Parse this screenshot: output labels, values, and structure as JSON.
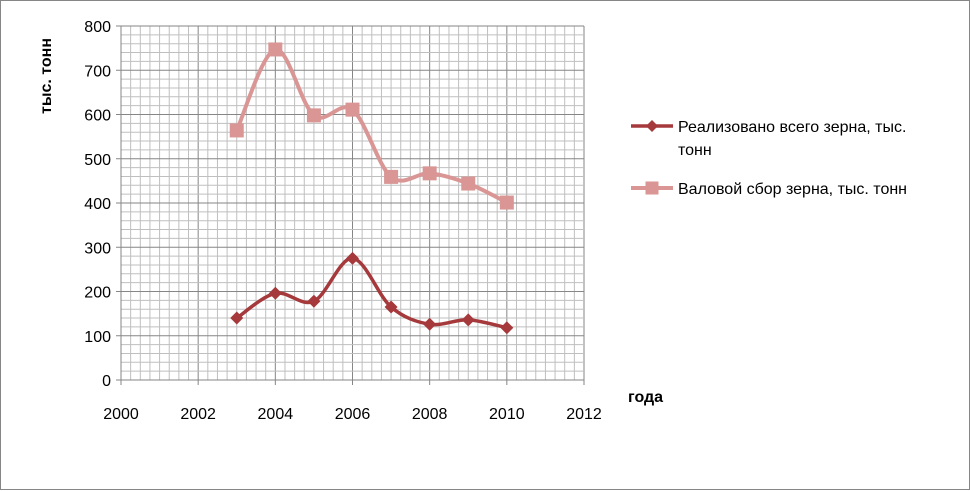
{
  "chart_data": {
    "type": "scatter",
    "xlabel": "года",
    "ylabel": "тыс. тонн",
    "xlim": [
      2000,
      2012
    ],
    "ylim": [
      0,
      800
    ],
    "x_ticks": [
      "2000",
      "2002",
      "2004",
      "2006",
      "2008",
      "2010",
      "2012"
    ],
    "y_ticks": [
      "0",
      "100",
      "200",
      "300",
      "400",
      "500",
      "600",
      "700",
      "800"
    ],
    "grid": true,
    "legend_position": "right",
    "series": [
      {
        "name": "Реализовано всего зерна, тыс. тонн",
        "legend_lines": [
          "Реализовано всего зерна, тыс.",
          "тонн"
        ],
        "color": "#A5393B",
        "marker": "diamond",
        "x": [
          2003,
          2004,
          2005,
          2006,
          2007,
          2008,
          2009,
          2010
        ],
        "y": [
          140,
          196,
          178,
          275,
          165,
          126,
          136,
          118
        ]
      },
      {
        "name": "Валовой сбор зерна, тыс. тонн",
        "legend_lines": [
          "Валовой сбор зерна, тыс. тонн"
        ],
        "color": "#D99694",
        "marker": "square",
        "x": [
          2003,
          2004,
          2005,
          2006,
          2007,
          2008,
          2009,
          2010
        ],
        "y": [
          564,
          747,
          598,
          611,
          459,
          467,
          444,
          401
        ]
      }
    ]
  }
}
